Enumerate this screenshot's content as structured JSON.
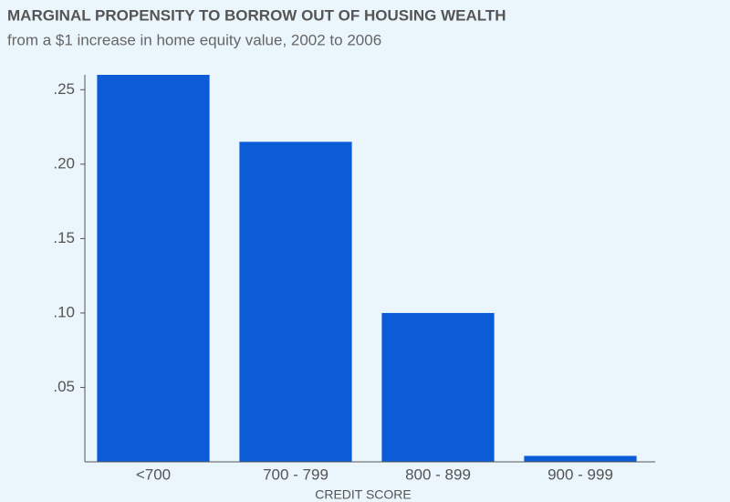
{
  "chart_data": {
    "type": "bar",
    "title": "MARGINAL PROPENSITY TO BORROW OUT OF HOUSING WEALTH",
    "subtitle": "from a $1 increase in home equity value, 2002 to 2006",
    "x_label": "CREDIT SCORE",
    "categories": [
      "<700",
      "700 - 799",
      "800 - 899",
      "900 - 999"
    ],
    "values": [
      0.26,
      0.215,
      0.1,
      0.004
    ],
    "color": "#0b5cd6",
    "ylim": [
      0,
      0.26
    ],
    "yticks": [
      {
        "value": 0.05,
        "label": ".05"
      },
      {
        "value": 0.1,
        "label": ".10"
      },
      {
        "value": 0.15,
        "label": ".15"
      },
      {
        "value": 0.2,
        "label": ".20"
      },
      {
        "value": 0.25,
        "label": ".25"
      }
    ],
    "grid": false
  }
}
